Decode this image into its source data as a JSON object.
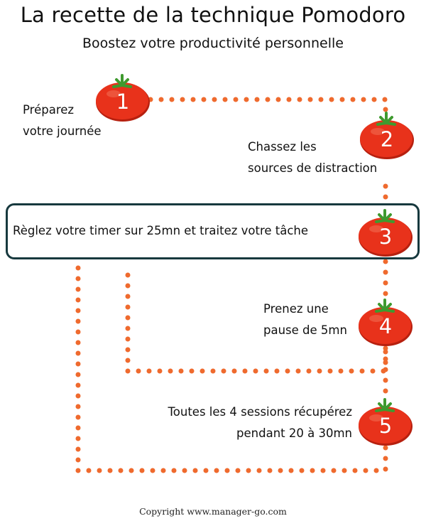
{
  "header": {
    "title": "La recette de la technique Pomodoro",
    "subtitle": "Boostez votre productivité personnelle"
  },
  "steps": [
    {
      "number": "1",
      "line1": "Préparez",
      "line2": "votre journée"
    },
    {
      "number": "2",
      "line1": "Chassez les",
      "line2": "sources de distraction"
    },
    {
      "number": "3",
      "line1": "Règlez votre timer sur 25mn et traitez votre tâche",
      "line2": ""
    },
    {
      "number": "4",
      "line1": "Prenez une",
      "line2": "pause de 5mn"
    },
    {
      "number": "5",
      "line1": "Toutes les 4 sessions récupérez",
      "line2": "pendant 20 à 30mn"
    }
  ],
  "footer": {
    "copyright": "Copyright www.manager-go.com"
  },
  "colors": {
    "tomato": "#e8321b",
    "tomato_shadow": "#b7200f",
    "leaf": "#3f9a2f",
    "dots": "#ef6a2e",
    "focus_border": "#17393e"
  }
}
